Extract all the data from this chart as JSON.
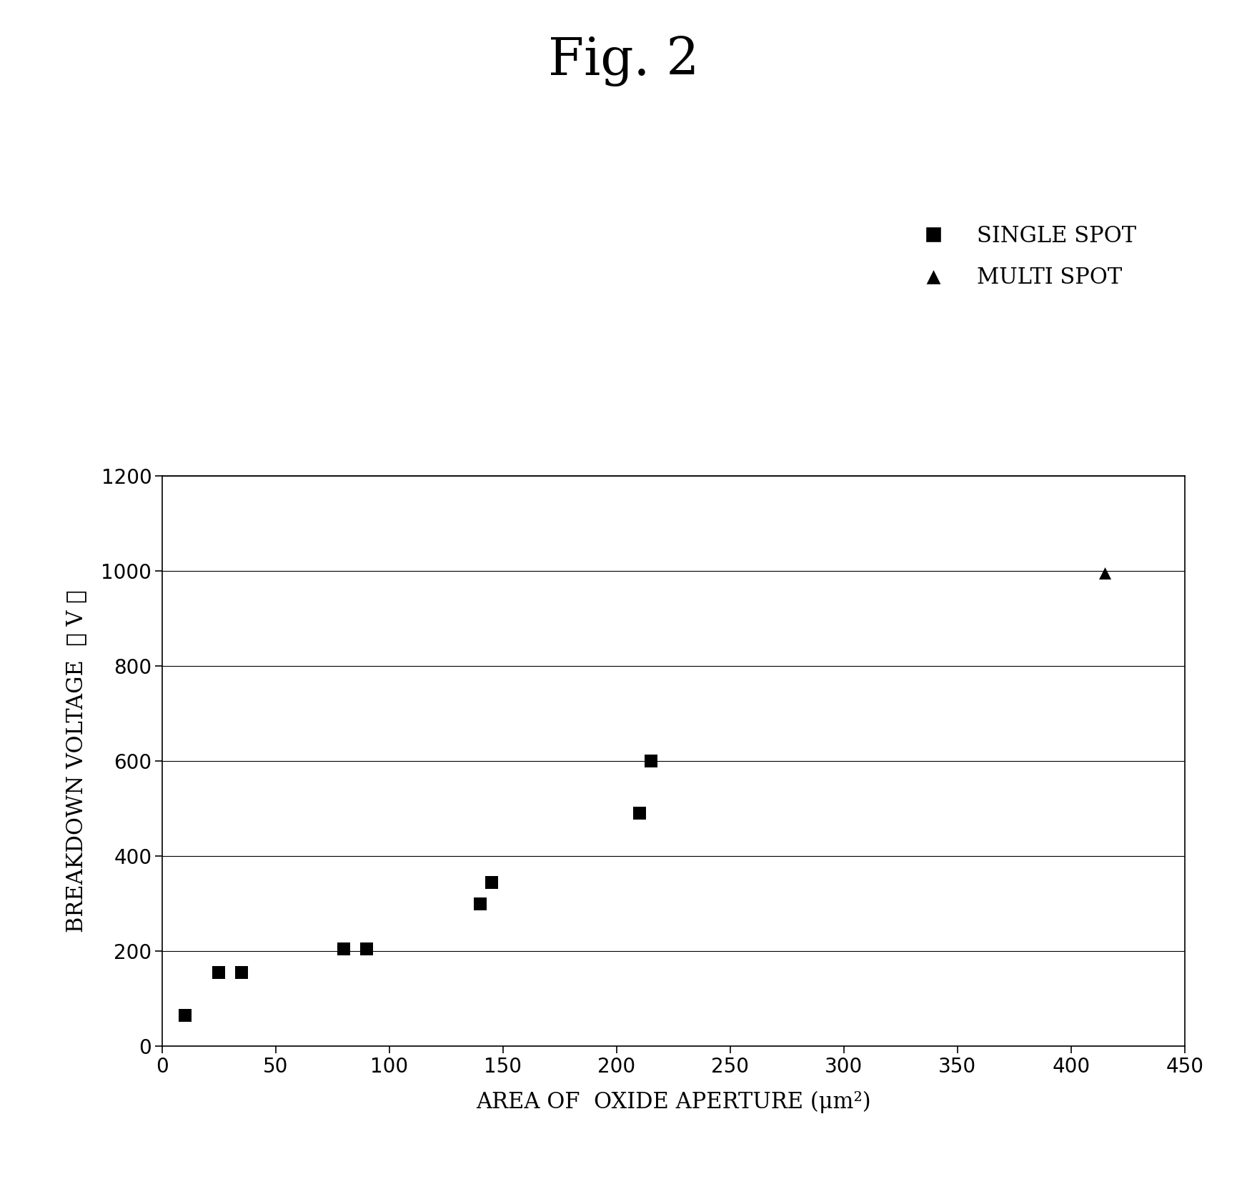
{
  "title": "Fig. 2",
  "xlabel": "AREA OF  OXIDE APERTURE (μm²)",
  "ylabel": "BREAKDOWN VOLTAGE  （ V ）",
  "xlim": [
    0,
    450
  ],
  "ylim": [
    0,
    1200
  ],
  "xticks": [
    0,
    50,
    100,
    150,
    200,
    250,
    300,
    350,
    400,
    450
  ],
  "yticks": [
    0,
    200,
    400,
    600,
    800,
    1000,
    1200
  ],
  "single_spot_x": [
    10,
    25,
    35,
    80,
    90,
    140,
    145,
    210,
    215
  ],
  "single_spot_y": [
    65,
    155,
    155,
    205,
    205,
    300,
    345,
    490,
    600
  ],
  "multi_spot_x": [
    415
  ],
  "multi_spot_y": [
    995
  ],
  "marker_color": "#000000",
  "background_color": "#ffffff",
  "legend_label_single": "SINGLE SPOT",
  "legend_label_multi": "MULTI SPOT",
  "title_fontsize": 52,
  "axis_label_fontsize": 22,
  "tick_fontsize": 20,
  "legend_fontsize": 22,
  "marker_size": 150
}
